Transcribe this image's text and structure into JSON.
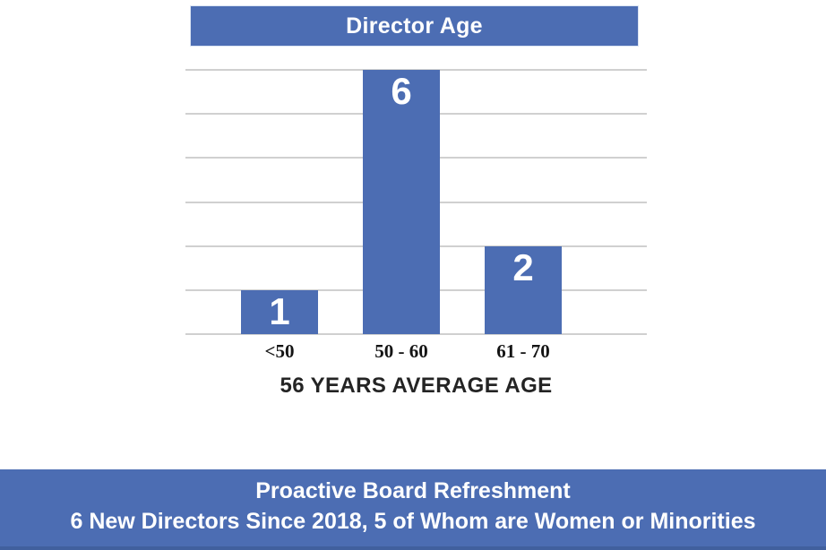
{
  "title_banner": {
    "text": "Director Age"
  },
  "chart_data": {
    "type": "bar",
    "title": "Director Age",
    "categories": [
      "<50",
      "50 - 60",
      "61 - 70"
    ],
    "values": [
      1,
      6,
      2
    ],
    "data_labels": [
      "1",
      "6",
      "2"
    ],
    "xlabel": "56 YEARS AVERAGE AGE",
    "ylabel": "",
    "ylim": [
      0,
      6
    ],
    "gridline_count": 7,
    "grid": "horizontal",
    "legend_position": "none",
    "bar_color": "#4C6DB3",
    "gridline_color": "#D0D0D0",
    "data_label_color": "#FFFFFF"
  },
  "axis_title": "56 YEARS AVERAGE AGE",
  "footer_banner": {
    "line1": "Proactive Board Refreshment",
    "line2": "6 New Directors Since 2018, 5 of Whom are Women or Minorities"
  },
  "colors": {
    "accent_blue": "#4C6DB3",
    "footer_bottom_edge": "#41609E",
    "gridline": "#D0D0D0",
    "axis_text": "#141414",
    "white": "#FFFFFF"
  }
}
